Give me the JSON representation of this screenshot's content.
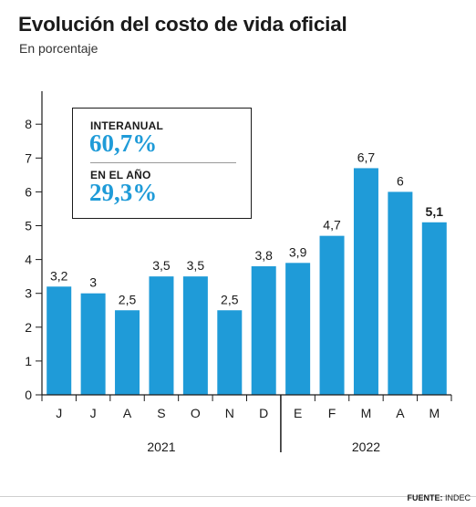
{
  "header": {
    "title": "Evolución del costo de vida oficial",
    "subtitle": "En porcentaje"
  },
  "legend_box": {
    "items": [
      {
        "label": "INTERANUAL",
        "value": "60,7%"
      },
      {
        "label": "EN EL AÑO",
        "value": "29,3%"
      }
    ]
  },
  "footer": {
    "source_label": "FUENTE:",
    "source_value": "INDEC"
  },
  "colors": {
    "bar": "#1f9bd8",
    "highlight": "#1f9bd8",
    "axis": "#1a1a1a"
  },
  "chart_data": {
    "type": "bar",
    "title": "Evolución del costo de vida oficial",
    "subtitle": "En porcentaje",
    "categories": [
      "J",
      "J",
      "A",
      "S",
      "O",
      "N",
      "D",
      "E",
      "F",
      "M",
      "A",
      "M"
    ],
    "values": [
      3.2,
      3,
      2.5,
      3.5,
      3.5,
      2.5,
      3.8,
      3.9,
      4.7,
      6.7,
      6,
      5.1
    ],
    "value_labels": [
      "3,2",
      "3",
      "2,5",
      "3,5",
      "3,5",
      "2,5",
      "3,8",
      "3,9",
      "4,7",
      "6,7",
      "6",
      "5,1"
    ],
    "bold_label_index": 11,
    "yticks": [
      0,
      1,
      2,
      3,
      4,
      5,
      6,
      7,
      8
    ],
    "ylim": [
      0,
      9
    ],
    "groups": [
      {
        "label": "2021",
        "start": 0,
        "end": 6
      },
      {
        "label": "2022",
        "start": 7,
        "end": 11
      }
    ],
    "grid": false,
    "xlabel": "",
    "ylabel": ""
  }
}
